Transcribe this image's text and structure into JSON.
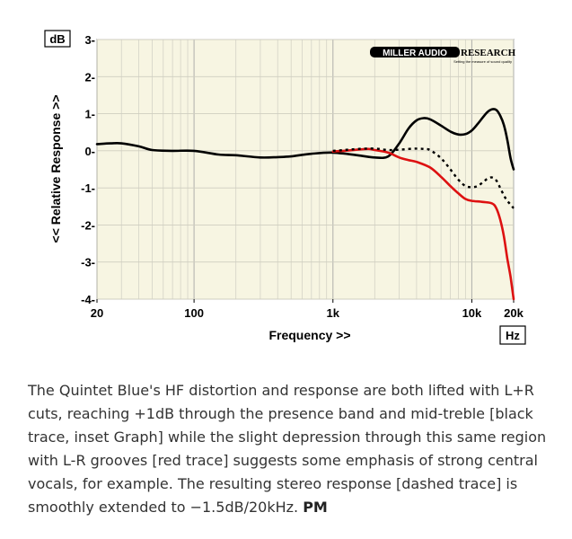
{
  "chart_data": {
    "type": "line",
    "title": "",
    "xlabel": "Frequency >>",
    "ylabel": "<< Relative Response >>",
    "x_unit_box": "Hz",
    "y_unit_box": "dB",
    "x_scale": "log",
    "xlim": [
      20,
      20000
    ],
    "ylim": [
      -4,
      3
    ],
    "x_ticks": [
      {
        "value": 20,
        "label": "20"
      },
      {
        "value": 100,
        "label": "100"
      },
      {
        "value": 1000,
        "label": "1k"
      },
      {
        "value": 10000,
        "label": "10k"
      },
      {
        "value": 20000,
        "label": "20k"
      }
    ],
    "y_ticks": [
      {
        "value": 3,
        "label": "3-"
      },
      {
        "value": 2,
        "label": "2-"
      },
      {
        "value": 1,
        "label": "1-"
      },
      {
        "value": 0,
        "label": "0-"
      },
      {
        "value": -1,
        "label": "-1-"
      },
      {
        "value": -2,
        "label": "-2-"
      },
      {
        "value": -3,
        "label": "-3-"
      },
      {
        "value": -4,
        "label": "-4-"
      }
    ],
    "grid": true,
    "background_color": "#f7f5e2",
    "series": [
      {
        "color": "#000000",
        "style": "solid",
        "points": [
          [
            20,
            0.18
          ],
          [
            25,
            0.2
          ],
          [
            30,
            0.2
          ],
          [
            40,
            0.12
          ],
          [
            50,
            0.02
          ],
          [
            70,
            0.0
          ],
          [
            100,
            0.0
          ],
          [
            150,
            -0.1
          ],
          [
            200,
            -0.12
          ],
          [
            300,
            -0.18
          ],
          [
            400,
            -0.17
          ],
          [
            500,
            -0.15
          ],
          [
            700,
            -0.08
          ],
          [
            1000,
            -0.05
          ],
          [
            1500,
            -0.12
          ],
          [
            2000,
            -0.18
          ],
          [
            2500,
            -0.15
          ],
          [
            3000,
            0.2
          ],
          [
            3500,
            0.6
          ],
          [
            4000,
            0.82
          ],
          [
            4500,
            0.88
          ],
          [
            5000,
            0.85
          ],
          [
            6000,
            0.68
          ],
          [
            7000,
            0.52
          ],
          [
            8000,
            0.44
          ],
          [
            9000,
            0.45
          ],
          [
            10000,
            0.55
          ],
          [
            11000,
            0.72
          ],
          [
            12000,
            0.9
          ],
          [
            13000,
            1.05
          ],
          [
            14000,
            1.12
          ],
          [
            15000,
            1.1
          ],
          [
            16000,
            0.95
          ],
          [
            17000,
            0.7
          ],
          [
            18000,
            0.3
          ],
          [
            19000,
            -0.2
          ],
          [
            20000,
            -0.5
          ]
        ]
      },
      {
        "color": "#dd1111",
        "style": "solid",
        "points": [
          [
            1000,
            -0.02
          ],
          [
            1200,
            0.0
          ],
          [
            1500,
            0.03
          ],
          [
            1800,
            0.05
          ],
          [
            2000,
            0.02
          ],
          [
            2500,
            -0.05
          ],
          [
            3000,
            -0.18
          ],
          [
            3500,
            -0.25
          ],
          [
            4000,
            -0.3
          ],
          [
            5000,
            -0.45
          ],
          [
            6000,
            -0.7
          ],
          [
            7000,
            -0.95
          ],
          [
            8000,
            -1.15
          ],
          [
            9000,
            -1.3
          ],
          [
            10000,
            -1.35
          ],
          [
            12000,
            -1.38
          ],
          [
            14000,
            -1.42
          ],
          [
            15000,
            -1.55
          ],
          [
            16000,
            -1.85
          ],
          [
            17000,
            -2.3
          ],
          [
            18000,
            -2.9
          ],
          [
            19000,
            -3.4
          ],
          [
            20000,
            -4.0
          ]
        ]
      },
      {
        "color": "#000000",
        "style": "dashed",
        "points": [
          [
            1000,
            0.0
          ],
          [
            1200,
            0.02
          ],
          [
            1500,
            0.05
          ],
          [
            2000,
            0.06
          ],
          [
            2500,
            0.02
          ],
          [
            3000,
            0.03
          ],
          [
            3500,
            0.05
          ],
          [
            4000,
            0.06
          ],
          [
            4500,
            0.05
          ],
          [
            5000,
            0.02
          ],
          [
            6000,
            -0.2
          ],
          [
            7000,
            -0.5
          ],
          [
            8000,
            -0.78
          ],
          [
            9000,
            -0.95
          ],
          [
            10000,
            -0.98
          ],
          [
            11000,
            -0.95
          ],
          [
            12000,
            -0.85
          ],
          [
            13000,
            -0.75
          ],
          [
            14000,
            -0.72
          ],
          [
            15000,
            -0.8
          ],
          [
            16000,
            -1.0
          ],
          [
            17000,
            -1.2
          ],
          [
            18000,
            -1.35
          ],
          [
            19000,
            -1.45
          ],
          [
            20000,
            -1.55
          ]
        ]
      }
    ]
  },
  "logo": {
    "brand_left": "MILLER AUDIO",
    "brand_right": "RESEARCH",
    "tagline": "Setting the measure of sound quality"
  },
  "caption": {
    "text": "The Quintet Blue's HF distortion and response are both lifted with L+R cuts, reaching +1dB through the presence band and mid-treble [black trace, inset Graph] while the slight depression through this same region with L-R grooves [red trace] suggests some emphasis of strong central vocals, for example. The resulting stereo response [dashed trace] is smoothly extended to −1.5dB/20kHz.",
    "initials": "PM"
  }
}
